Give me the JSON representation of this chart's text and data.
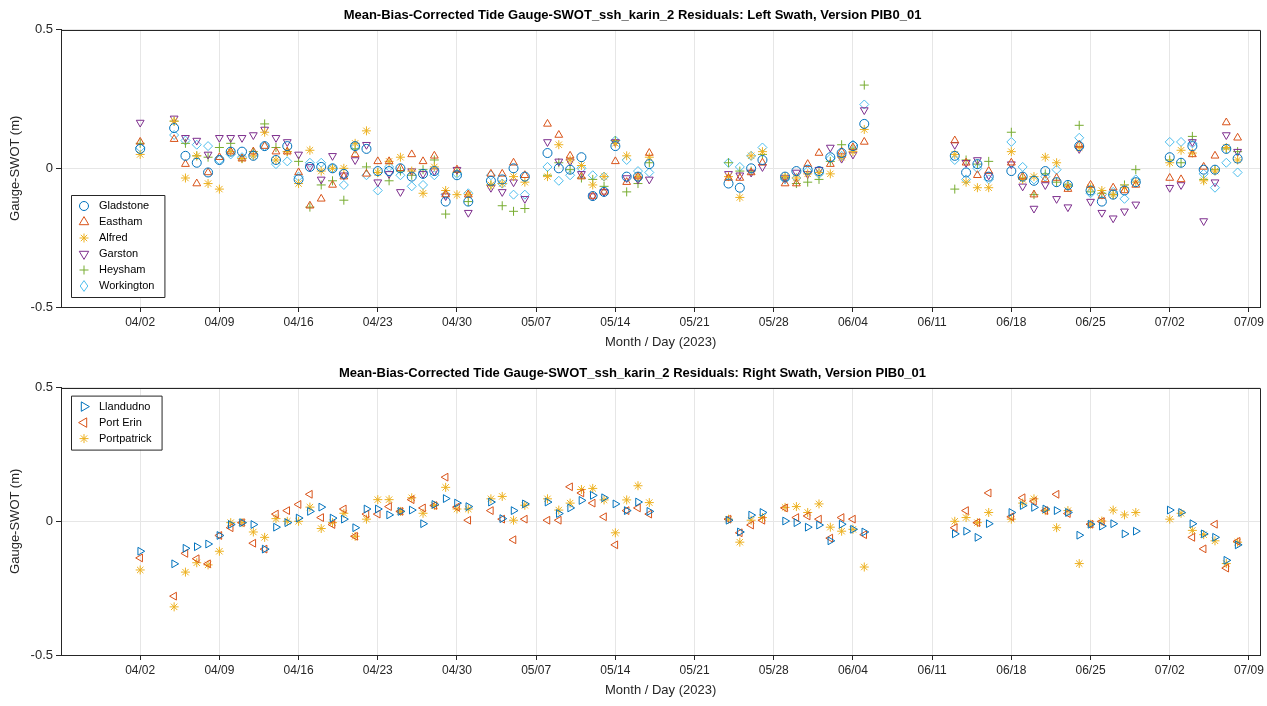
{
  "chart_data": [
    {
      "type": "scatter",
      "title": "Mean-Bias-Corrected Tide Gauge-SWOT_ssh_karin_2 Residuals: Left Swath, Version PIB0_01",
      "xlabel": "Month / Day (2023)",
      "ylabel": "Gauge-SWOT (m)",
      "x": [
        "2023-04-02",
        "2023-04-05",
        "2023-04-06",
        "2023-04-07",
        "2023-04-08",
        "2023-04-09",
        "2023-04-10",
        "2023-04-11",
        "2023-04-12",
        "2023-04-13",
        "2023-04-14",
        "2023-04-15",
        "2023-04-16",
        "2023-04-17",
        "2023-04-18",
        "2023-04-19",
        "2023-04-20",
        "2023-04-21",
        "2023-04-22",
        "2023-04-23",
        "2023-04-24",
        "2023-04-25",
        "2023-04-26",
        "2023-04-27",
        "2023-04-28",
        "2023-04-29",
        "2023-04-30",
        "2023-05-01",
        "2023-05-03",
        "2023-05-04",
        "2023-05-05",
        "2023-05-06",
        "2023-05-08",
        "2023-05-09",
        "2023-05-10",
        "2023-05-11",
        "2023-05-12",
        "2023-05-13",
        "2023-05-14",
        "2023-05-15",
        "2023-05-16",
        "2023-05-17",
        "2023-05-24",
        "2023-05-25",
        "2023-05-26",
        "2023-05-27",
        "2023-05-29",
        "2023-05-30",
        "2023-05-31",
        "2023-06-01",
        "2023-06-02",
        "2023-06-03",
        "2023-06-04",
        "2023-06-05",
        "2023-06-13",
        "2023-06-14",
        "2023-06-15",
        "2023-06-16",
        "2023-06-18",
        "2023-06-19",
        "2023-06-20",
        "2023-06-21",
        "2023-06-22",
        "2023-06-23",
        "2023-06-24",
        "2023-06-25",
        "2023-06-26",
        "2023-06-27",
        "2023-06-28",
        "2023-06-29",
        "2023-07-02",
        "2023-07-03",
        "2023-07-04",
        "2023-07-05",
        "2023-07-06",
        "2023-07-07",
        "2023-07-08"
      ],
      "xlim": [
        "2023-03-26",
        "2023-07-10"
      ],
      "xticks": [
        {
          "value": "2023-04-02",
          "label": "04/02"
        },
        {
          "value": "2023-04-09",
          "label": "04/09"
        },
        {
          "value": "2023-04-16",
          "label": "04/16"
        },
        {
          "value": "2023-04-23",
          "label": "04/23"
        },
        {
          "value": "2023-04-30",
          "label": "04/30"
        },
        {
          "value": "2023-05-07",
          "label": "05/07"
        },
        {
          "value": "2023-05-14",
          "label": "05/14"
        },
        {
          "value": "2023-05-21",
          "label": "05/21"
        },
        {
          "value": "2023-05-28",
          "label": "05/28"
        },
        {
          "value": "2023-06-04",
          "label": "06/04"
        },
        {
          "value": "2023-06-11",
          "label": "06/11"
        },
        {
          "value": "2023-06-18",
          "label": "06/18"
        },
        {
          "value": "2023-06-25",
          "label": "06/25"
        },
        {
          "value": "2023-07-02",
          "label": "07/02"
        },
        {
          "value": "2023-07-09",
          "label": "07/09"
        }
      ],
      "ylim": [
        -0.5,
        0.5
      ],
      "yticks": [
        -0.5,
        0,
        0.5
      ],
      "grid": true,
      "legend": "bottom left",
      "series": [
        {
          "name": "Gladstone",
          "color": "#0072bd",
          "marker": "circle",
          "values": [
            0.07,
            0.145,
            0.045,
            0.02,
            -0.015,
            0.03,
            0.06,
            0.06,
            0.045,
            0.08,
            0.03,
            0.08,
            -0.04,
            0.005,
            0.005,
            0,
            -0.02,
            0.08,
            0.07,
            -0.01,
            -0.01,
            0,
            -0.03,
            -0.02,
            -0.01,
            -0.12,
            -0.025,
            -0.12,
            -0.045,
            -0.04,
            0,
            -0.03,
            0.055,
            0,
            -0.005,
            0.04,
            -0.1,
            -0.085,
            0.08,
            -0.03,
            -0.03,
            0.015,
            -0.055,
            -0.07,
            0,
            0.03,
            -0.03,
            -0.01,
            -0.005,
            -0.01,
            0.04,
            0.055,
            0.08,
            0.16,
            0.045,
            -0.015,
            0.015,
            -0.03,
            -0.01,
            -0.03,
            -0.045,
            -0.01,
            -0.05,
            -0.06,
            0.08,
            -0.08,
            -0.12,
            -0.095,
            -0.08,
            -0.05,
            0.04,
            0.02,
            0.08,
            -0.005,
            -0.005,
            0.07,
            0.035
          ]
        },
        {
          "name": "Eastham",
          "color": "#d95319",
          "marker": "triangle",
          "values": [
            0.095,
            0.105,
            0.015,
            -0.055,
            -0.015,
            0.04,
            0.06,
            0.035,
            0.06,
            0.08,
            0.06,
            0.06,
            -0.015,
            -0.135,
            -0.11,
            -0.06,
            -0.03,
            0.05,
            -0.02,
            0.025,
            0.025,
            0,
            0.05,
            0.025,
            0.045,
            -0.095,
            -0.005,
            -0.095,
            -0.02,
            -0.02,
            0.02,
            -0.025,
            0.16,
            0.12,
            0.045,
            -0.03,
            -0.1,
            -0.085,
            0.025,
            -0.05,
            -0.03,
            0.055,
            -0.035,
            -0.035,
            -0.015,
            0.02,
            -0.055,
            -0.055,
            0.015,
            0.055,
            0.015,
            0.06,
            0.075,
            0.095,
            0.1,
            0.02,
            -0.025,
            -0.01,
            0.02,
            -0.03,
            -0.095,
            -0.04,
            -0.035,
            -0.075,
            0.085,
            -0.06,
            -0.1,
            -0.07,
            -0.08,
            -0.06,
            -0.035,
            -0.04,
            0.05,
            0.005,
            0.045,
            0.165,
            0.11
          ]
        },
        {
          "name": "Alfred",
          "color": "#edb120",
          "values": [
            0.05,
            0.17,
            -0.035,
            0.045,
            -0.055,
            -0.075,
            0.06,
            0.035,
            0.045,
            0.13,
            0.03,
            0.06,
            -0.055,
            0.065,
            -0.01,
            0,
            0,
            0.09,
            0.135,
            -0.015,
            0.025,
            0.04,
            -0.01,
            -0.09,
            0.005,
            -0.08,
            -0.095,
            -0.095,
            -0.06,
            -0.055,
            -0.03,
            -0.05,
            -0.03,
            0.085,
            0.03,
            0.01,
            -0.06,
            -0.03,
            0.09,
            0.045,
            -0.03,
            0.04,
            -0.03,
            -0.105,
            0.045,
            0.06,
            -0.03,
            -0.035,
            -0.02,
            -0.015,
            -0.02,
            0.04,
            0.06,
            0.14,
            0.05,
            -0.05,
            -0.07,
            -0.07,
            0.06,
            -0.04,
            -0.03,
            0.04,
            0.02,
            -0.065,
            0.075,
            -0.07,
            -0.08,
            -0.095,
            -0.07,
            -0.05,
            0.02,
            0.065,
            0.055,
            -0.045,
            -0.01,
            0.075,
            0.03
          ]
        },
        {
          "name": "Garston",
          "color": "#7e2f8e",
          "marker": "triangle-down",
          "values": [
            0.165,
            0.18,
            0.11,
            0.1,
            0.05,
            0.11,
            0.11,
            0.11,
            0.12,
            0.14,
            0.11,
            0.095,
            0.05,
            0.005,
            -0.04,
            0.045,
            -0.025,
            0.03,
            0.085,
            -0.05,
            -0.02,
            -0.085,
            -0.01,
            -0.02,
            -0.01,
            -0.1,
            -0.005,
            -0.16,
            -0.07,
            -0.085,
            -0.05,
            -0.11,
            0.095,
            0.025,
            0.025,
            -0.02,
            -0.1,
            -0.085,
            0.095,
            -0.035,
            -0.04,
            -0.04,
            -0.02,
            -0.025,
            -0.015,
            0.005,
            -0.035,
            -0.015,
            -0.02,
            -0.005,
            0.075,
            0.035,
            0.05,
            0.21,
            0.085,
            0.02,
            0.03,
            -0.025,
            0.015,
            -0.065,
            -0.145,
            -0.06,
            -0.11,
            -0.14,
            0.07,
            -0.12,
            -0.16,
            -0.18,
            -0.155,
            -0.13,
            -0.07,
            -0.06,
            0.095,
            -0.19,
            -0.05,
            0.12,
            0.06
          ]
        },
        {
          "name": "Heysham",
          "color": "#77ac30",
          "marker": "cross",
          "values": [
            0.09,
            0.17,
            0.09,
            0.045,
            0.04,
            0.075,
            0.09,
            0.035,
            0.06,
            0.16,
            0.075,
            0.06,
            0.025,
            -0.14,
            -0.06,
            -0.045,
            -0.115,
            0.07,
            0.005,
            -0.015,
            -0.045,
            -0.01,
            -0.025,
            -0.005,
            0.03,
            -0.165,
            -0.015,
            -0.12,
            -0.06,
            -0.135,
            -0.155,
            -0.145,
            -0.025,
            0.02,
            -0.005,
            -0.035,
            -0.04,
            -0.065,
            0.1,
            -0.085,
            -0.055,
            0.02,
            0.02,
            -0.01,
            -0.01,
            0.05,
            -0.035,
            -0.055,
            -0.05,
            -0.04,
            0.025,
            0.085,
            0.07,
            0.3,
            -0.075,
            0.03,
            0.015,
            0.025,
            0.13,
            -0.035,
            -0.095,
            -0.02,
            -0.05,
            -0.06,
            0.155,
            -0.085,
            -0.09,
            -0.095,
            -0.06,
            -0.005,
            0.03,
            0.02,
            0.115,
            -0.04,
            -0.005,
            0.07,
            0.06
          ]
        },
        {
          "name": "Workington",
          "color": "#4dbeee",
          "marker": "diamond",
          "values": [
            0.075,
            0.12,
            0.1,
            0.085,
            0.08,
            0.03,
            0.05,
            0.04,
            0.05,
            0.08,
            0.015,
            0.025,
            -0.03,
            0.02,
            0.02,
            0,
            -0.06,
            0.08,
            -0.025,
            -0.08,
            0.005,
            -0.025,
            -0.065,
            -0.06,
            -0.025,
            -0.095,
            -0.02,
            -0.09,
            -0.025,
            -0.055,
            -0.095,
            -0.095,
            0.005,
            -0.045,
            -0.025,
            0,
            -0.025,
            -0.03,
            0.1,
            0.03,
            -0.01,
            -0.015,
            0.02,
            0.005,
            0.045,
            0.075,
            -0.04,
            -0.035,
            -0.01,
            -0.02,
            0.035,
            0.045,
            0.085,
            0.23,
            0.03,
            -0.04,
            0,
            -0.04,
            0.095,
            0.005,
            -0.04,
            -0.03,
            -0.005,
            -0.065,
            0.11,
            -0.09,
            -0.095,
            -0.085,
            -0.11,
            -0.04,
            0.095,
            0.095,
            0.09,
            -0.02,
            -0.07,
            0.02,
            -0.015
          ]
        }
      ]
    },
    {
      "type": "scatter",
      "title": "Mean-Bias-Corrected Tide Gauge-SWOT_ssh_karin_2 Residuals: Right Swath, Version PIB0_01",
      "xlabel": "Month / Day (2023)",
      "ylabel": "Gauge-SWOT (m)",
      "x": [
        "2023-04-02",
        "2023-04-05",
        "2023-04-06",
        "2023-04-07",
        "2023-04-08",
        "2023-04-09",
        "2023-04-10",
        "2023-04-11",
        "2023-04-12",
        "2023-04-13",
        "2023-04-14",
        "2023-04-15",
        "2023-04-16",
        "2023-04-17",
        "2023-04-18",
        "2023-04-19",
        "2023-04-20",
        "2023-04-21",
        "2023-04-22",
        "2023-04-23",
        "2023-04-24",
        "2023-04-25",
        "2023-04-26",
        "2023-04-27",
        "2023-04-28",
        "2023-04-29",
        "2023-04-30",
        "2023-05-01",
        "2023-05-03",
        "2023-05-04",
        "2023-05-05",
        "2023-05-06",
        "2023-05-08",
        "2023-05-09",
        "2023-05-10",
        "2023-05-11",
        "2023-05-12",
        "2023-05-13",
        "2023-05-14",
        "2023-05-15",
        "2023-05-16",
        "2023-05-17",
        "2023-05-24",
        "2023-05-25",
        "2023-05-26",
        "2023-05-27",
        "2023-05-29",
        "2023-05-30",
        "2023-05-31",
        "2023-06-01",
        "2023-06-02",
        "2023-06-03",
        "2023-06-04",
        "2023-06-05",
        "2023-06-13",
        "2023-06-14",
        "2023-06-15",
        "2023-06-16",
        "2023-06-18",
        "2023-06-19",
        "2023-06-20",
        "2023-06-21",
        "2023-06-22",
        "2023-06-23",
        "2023-06-24",
        "2023-06-25",
        "2023-06-26",
        "2023-06-27",
        "2023-06-28",
        "2023-06-29",
        "2023-07-02",
        "2023-07-03",
        "2023-07-04",
        "2023-07-05",
        "2023-07-06",
        "2023-07-07",
        "2023-07-08"
      ],
      "xlim": [
        "2023-03-26",
        "2023-07-10"
      ],
      "xticks": [
        {
          "value": "2023-04-02",
          "label": "04/02"
        },
        {
          "value": "2023-04-09",
          "label": "04/09"
        },
        {
          "value": "2023-04-16",
          "label": "04/16"
        },
        {
          "value": "2023-04-23",
          "label": "04/23"
        },
        {
          "value": "2023-04-30",
          "label": "04/30"
        },
        {
          "value": "2023-05-07",
          "label": "05/07"
        },
        {
          "value": "2023-05-14",
          "label": "05/14"
        },
        {
          "value": "2023-05-21",
          "label": "05/21"
        },
        {
          "value": "2023-05-28",
          "label": "05/28"
        },
        {
          "value": "2023-06-04",
          "label": "06/04"
        },
        {
          "value": "2023-06-11",
          "label": "06/11"
        },
        {
          "value": "2023-06-18",
          "label": "06/18"
        },
        {
          "value": "2023-06-25",
          "label": "06/25"
        },
        {
          "value": "2023-07-02",
          "label": "07/02"
        },
        {
          "value": "2023-07-09",
          "label": "07/09"
        }
      ],
      "ylim": [
        -0.5,
        0.5
      ],
      "yticks": [
        -0.5,
        0,
        0.5
      ],
      "grid": true,
      "legend": "top left",
      "series": [
        {
          "name": "Llandudno",
          "color": "#0072bd",
          "marker": "triangle-right",
          "values": [
            -0.112,
            -0.159,
            -0.101,
            -0.095,
            -0.085,
            -0.053,
            -0.012,
            -0.005,
            -0.012,
            -0.104,
            -0.022,
            -0.005,
            0.012,
            0.037,
            0.053,
            0.012,
            0.008,
            -0.024,
            0.046,
            0.046,
            0.024,
            0.037,
            0.042,
            -0.009,
            0.063,
            0.085,
            0.068,
            0.055,
            0.072,
            0.01,
            0.04,
            0.065,
            0.072,
            0.029,
            0.05,
            0.078,
            0.097,
            0.088,
            0.065,
            0.04,
            0.072,
            0.037,
            0.004,
            -0.04,
            0.023,
            0.033,
            0.001,
            -0.005,
            -0.022,
            -0.014,
            -0.073,
            -0.011,
            -0.03,
            -0.04,
            -0.047,
            -0.037,
            -0.06,
            -0.009,
            0.033,
            0.059,
            0.052,
            0.046,
            0.04,
            0.033,
            -0.052,
            -0.011,
            -0.018,
            -0.009,
            -0.047,
            -0.037,
            0.042,
            0.033,
            -0.009,
            -0.047,
            -0.06,
            -0.146,
            -0.088
          ]
        },
        {
          "name": "Port Erin",
          "color": "#d95319",
          "marker": "triangle-left",
          "values": [
            -0.137,
            -0.28,
            -0.12,
            -0.14,
            -0.159,
            -0.053,
            -0.024,
            -0.005,
            -0.082,
            -0.104,
            0.027,
            0.04,
            0.063,
            0.101,
            0.014,
            -0.012,
            0.046,
            -0.056,
            0.027,
            0.027,
            0.055,
            0.037,
            0.081,
            0.05,
            0.059,
            0.165,
            0.053,
            0.004,
            0.04,
            0.008,
            -0.069,
            0.008,
            0.004,
            0.004,
            0.129,
            0.106,
            0.068,
            0.017,
            -0.088,
            0.04,
            0.05,
            0.027,
            0.008,
            -0.043,
            -0.014,
            0.004,
            0.05,
            0.014,
            0.02,
            0.008,
            -0.063,
            0.014,
            0.008,
            -0.05,
            -0.024,
            0.04,
            -0.005,
            0.106,
            0.017,
            0.088,
            0.075,
            0.04,
            0.101,
            0.029,
            null,
            -0.011,
            -0.001,
            null,
            null,
            null,
            null,
            null,
            -0.06,
            -0.103,
            -0.011,
            -0.175,
            -0.075
          ]
        },
        {
          "name": "Portpatrick",
          "color": "#edb120",
          "values": [
            -0.182,
            -0.32,
            -0.19,
            -0.155,
            -0.163,
            -0.112,
            -0.005,
            -0.005,
            -0.04,
            -0.06,
            0.01,
            0,
            0,
            0.053,
            -0.027,
            -0.005,
            0.03,
            -0.056,
            0.008,
            0.081,
            0.081,
            0.037,
            0.088,
            0.03,
            0.059,
            0.127,
            0.046,
            0.046,
            0.084,
            0.093,
            0.004,
            0.06,
            0.084,
            0.042,
            0.068,
            0.119,
            0.123,
            0.08,
            -0.043,
            0.08,
            0.133,
            0.07,
            0.008,
            -0.078,
            0.004,
            0.014,
            0.052,
            0.055,
            0.033,
            0.065,
            -0.022,
            -0.037,
            -0.03,
            -0.171,
            0,
            0.014,
            -0.005,
            0.033,
            0.008,
            0.068,
            0.084,
            0.04,
            -0.024,
            0.04,
            -0.158,
            -0.011,
            0.001,
            0.042,
            0.024,
            0.033,
            0.008,
            0.03,
            -0.034,
            -0.05,
            -0.073,
            -0.158,
            -0.078
          ]
        }
      ]
    }
  ]
}
